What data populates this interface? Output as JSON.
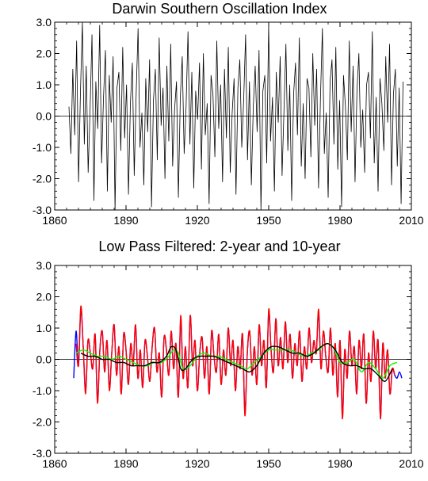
{
  "chart_data": [
    {
      "type": "line",
      "title": "Darwin Southern Oscillation Index",
      "xlim": [
        1860,
        2010
      ],
      "ylim": [
        -3.0,
        3.0
      ],
      "x_ticks": [
        "1860",
        "1890",
        "1920",
        "1950",
        "1980",
        "2010"
      ],
      "y_ticks": [
        "3.0",
        "2.0",
        "1.0",
        "0.0",
        "-1.0",
        "-2.0",
        "-3.0"
      ],
      "zero_line": true,
      "series": [
        {
          "color": "#000000",
          "x_start": 1866,
          "x_end": 2006.5,
          "values": [
            0.3,
            -1.2,
            1.5,
            -0.6,
            2.4,
            -2.1,
            0.8,
            3.0,
            -0.9,
            1.6,
            -1.8,
            0.2,
            2.6,
            -2.7,
            1.1,
            -0.4,
            2.9,
            -1.5,
            0.6,
            2.1,
            -2.4,
            1.3,
            -0.2,
            1.9,
            -3.0,
            0.9,
            1.4,
            -1.1,
            2.2,
            -0.7,
            1.0,
            -2.5,
            0.4,
            1.7,
            -1.9,
            0.7,
            2.8,
            -1.0,
            0.1,
            -2.2,
            1.2,
            -0.5,
            1.8,
            -2.9,
            0.5,
            1.5,
            -1.4,
            2.5,
            -0.3,
            0.9,
            -2.0,
            1.6,
            -0.8,
            2.3,
            -1.6,
            0.2,
            1.1,
            -2.6,
            0.6,
            1.9,
            -1.2,
            0.3,
            2.7,
            -0.9,
            1.4,
            -2.3,
            0.8,
            -0.1,
            1.7,
            -1.7,
            2.0,
            -0.6,
            0.4,
            -2.8,
            1.3,
            0.7,
            -1.3,
            2.4,
            -0.4,
            1.0,
            -2.1,
            1.5,
            -0.7,
            2.2,
            -1.8,
            0.1,
            1.2,
            -2.5,
            0.9,
            1.8,
            -1.0,
            0.5,
            2.6,
            -1.4,
            1.1,
            -2.2,
            0.3,
            1.6,
            -0.5,
            2.1,
            -3.0,
            0.8,
            1.3,
            -1.5,
            2.9,
            -0.8,
            0.6,
            -2.4,
            1.4,
            -0.2,
            1.9,
            -1.9,
            0.2,
            2.3,
            -1.1,
            1.0,
            -2.7,
            0.7,
            1.7,
            -0.6,
            2.5,
            -1.6,
            0.4,
            -2.0,
            1.2,
            0.9,
            -1.3,
            2.0,
            -0.3,
            1.5,
            -2.3,
            0.6,
            2.8,
            -1.2,
            0.1,
            -2.6,
            1.1,
            1.8,
            -0.9,
            2.2,
            -1.7,
            0.5,
            -2.9,
            1.3,
            0.3,
            -1.4,
            2.4,
            -0.5,
            1.6,
            -2.1,
            0.8,
            2.0,
            -1.0,
            0.2,
            -1.8,
            1.0,
            1.4,
            -0.7,
            2.7,
            -1.5,
            0.6,
            -2.4,
            1.2,
            0.4,
            -1.1,
            1.9,
            -0.2,
            2.3,
            -2.2,
            0.7,
            1.5,
            -1.6,
            0.9,
            -2.8,
            1.1
          ]
        }
      ]
    },
    {
      "type": "line",
      "title": "Low Pass Filtered: 2-year and 10-year",
      "xlim": [
        1860,
        2010
      ],
      "ylim": [
        -3.0,
        3.0
      ],
      "x_ticks": [
        "1860",
        "1890",
        "1920",
        "1950",
        "1980",
        "2010"
      ],
      "y_ticks": [
        "3.0",
        "2.0",
        "1.0",
        "0.0",
        "-1.0",
        "-2.0",
        "-3.0"
      ],
      "zero_line": true,
      "series": [
        {
          "color": "#0000ff",
          "x": [
            1868,
            1869,
            1870,
            1871,
            1872,
            1873,
            1874,
            1875,
            1876,
            1877,
            1878,
            1879,
            1880,
            1881,
            1882,
            1883,
            1884,
            1885,
            1886,
            1887,
            1888,
            1889,
            1890,
            1891,
            1892,
            1893,
            1894,
            1895,
            1896,
            1897,
            1898,
            1899,
            1900,
            1901,
            1902,
            1903,
            1904,
            1905,
            1906,
            1907,
            1908,
            1909,
            1910,
            1911,
            1912,
            1913,
            1914,
            1915,
            1916,
            1917,
            1918,
            1919,
            1920,
            1921,
            1922,
            1923,
            1924,
            1925,
            1926,
            1927,
            1928,
            1929,
            1930,
            1931,
            1932,
            1933,
            1934,
            1935,
            1936,
            1937,
            1938,
            1939,
            1940,
            1941,
            1942,
            1943,
            1944,
            1945,
            1946,
            1947,
            1948,
            1949,
            1950,
            1951,
            1952,
            1953,
            1954,
            1955,
            1956,
            1957,
            1958,
            1959,
            1960,
            1961,
            1962,
            1963,
            1964,
            1965,
            1966,
            1967,
            1968,
            1969,
            1970,
            1971,
            1972,
            1973,
            1974,
            1975,
            1976,
            1977,
            1978,
            1979,
            1980,
            1981,
            1982,
            1983,
            1984,
            1985,
            1986,
            1987,
            1988,
            1989,
            1990,
            1991,
            1992,
            1993,
            1994,
            1995,
            1996,
            1997,
            1998,
            1999,
            2000,
            2001,
            2002,
            2003,
            2004,
            2005,
            2006
          ],
          "values": [
            -0.6,
            0.9,
            -0.2,
            1.6,
            0.4,
            -1.0,
            0.6,
            0.2,
            -0.3,
            0.8,
            -1.3,
            0.3,
            0.9,
            -0.4,
            0.6,
            -0.9,
            0.2,
            1.1,
            -0.5,
            0.4,
            -1.1,
            0.8,
            0.3,
            -0.8,
            0.5,
            -0.2,
            1.1,
            -0.6,
            0.3,
            -0.9,
            0.6,
            0.1,
            -0.7,
            0.4,
            1.0,
            -0.4,
            0.2,
            -1.2,
            0.7,
            0.3,
            -0.5,
            0.9,
            -0.3,
            0.5,
            -1.2,
            1.3,
            -0.6,
            0.4,
            -0.9,
            1.4,
            -0.2,
            0.6,
            -1.0,
            0.2,
            0.7,
            -0.6,
            0.4,
            -1.1,
            0.9,
            0.1,
            -0.4,
            0.8,
            -0.8,
            0.3,
            -0.5,
            1.0,
            -0.2,
            0.6,
            -1.0,
            0.4,
            -0.3,
            0.8,
            -1.7,
            0.2,
            0.9,
            -0.5,
            0.4,
            -0.8,
            1.1,
            -0.2,
            0.6,
            -0.9,
            1.5,
            0.3,
            -0.4,
            1.3,
            -0.2,
            0.7,
            -0.3,
            1.2,
            -0.1,
            0.8,
            -0.6,
            0.5,
            -0.2,
            0.9,
            -0.7,
            0.4,
            -0.3,
            1.0,
            -0.1,
            0.6,
            0.2,
            1.5,
            -0.3,
            0.9,
            0.1,
            -0.4,
            1.0,
            -0.5,
            0.5,
            -1.2,
            0.6,
            -1.8,
            0.3,
            -0.6,
            0.9,
            -0.2,
            0.4,
            -1.1,
            0.6,
            -0.3,
            0.8,
            -1.4,
            0.2,
            -0.7,
            0.9,
            -0.3,
            0.6,
            -1.9,
            0.5,
            -0.6,
            0.3,
            -1.1,
            -0.3,
            -0.5,
            -0.6,
            -0.4,
            -0.6
          ]
        },
        {
          "color": "#ff0000",
          "x": [
            1869,
            1870,
            1871,
            1872,
            1873,
            1874,
            1875,
            1876,
            1877,
            1878,
            1879,
            1880,
            1881,
            1882,
            1883,
            1884,
            1885,
            1886,
            1887,
            1888,
            1889,
            1890,
            1891,
            1892,
            1893,
            1894,
            1895,
            1896,
            1897,
            1898,
            1899,
            1900,
            1901,
            1902,
            1903,
            1904,
            1905,
            1906,
            1907,
            1908,
            1909,
            1910,
            1911,
            1912,
            1913,
            1914,
            1915,
            1916,
            1917,
            1918,
            1919,
            1920,
            1921,
            1922,
            1923,
            1924,
            1925,
            1926,
            1927,
            1928,
            1929,
            1930,
            1931,
            1932,
            1933,
            1934,
            1935,
            1936,
            1937,
            1938,
            1939,
            1940,
            1941,
            1942,
            1943,
            1944,
            1945,
            1946,
            1947,
            1948,
            1949,
            1950,
            1951,
            1952,
            1953,
            1954,
            1955,
            1956,
            1957,
            1958,
            1959,
            1960,
            1961,
            1962,
            1963,
            1964,
            1965,
            1966,
            1967,
            1968,
            1969,
            1970,
            1971,
            1972,
            1973,
            1974,
            1975,
            1976,
            1977,
            1978,
            1979,
            1980,
            1981,
            1982,
            1983,
            1984,
            1985,
            1986,
            1987,
            1988,
            1989,
            1990,
            1991,
            1992,
            1993,
            1994,
            1995,
            1996,
            1997,
            1998,
            1999,
            2000,
            2001,
            2002,
            2003
          ],
          "values": [
            0.5,
            -0.2,
            1.7,
            0.4,
            -1.1,
            0.6,
            0.2,
            -0.3,
            0.8,
            -1.4,
            0.3,
            0.9,
            -0.4,
            0.6,
            -1.0,
            0.2,
            1.1,
            -0.5,
            0.4,
            -1.1,
            0.8,
            0.3,
            -0.8,
            0.5,
            -0.2,
            1.1,
            -0.6,
            0.3,
            -0.9,
            0.6,
            0.1,
            -0.7,
            0.4,
            1.0,
            -0.4,
            0.2,
            -1.2,
            0.7,
            0.3,
            -0.5,
            0.9,
            -0.3,
            0.5,
            -1.2,
            1.4,
            -0.6,
            0.4,
            -0.9,
            1.4,
            -0.2,
            0.6,
            -1.0,
            0.2,
            0.7,
            -0.6,
            0.4,
            -1.1,
            0.9,
            0.1,
            -0.4,
            0.8,
            -0.8,
            0.3,
            -0.5,
            1.0,
            -0.2,
            0.6,
            -1.0,
            0.4,
            -0.3,
            0.8,
            -1.8,
            0.2,
            0.9,
            -0.5,
            0.4,
            -0.8,
            1.1,
            -0.2,
            0.6,
            -0.9,
            1.6,
            0.3,
            -0.4,
            1.3,
            -0.2,
            0.7,
            -0.3,
            1.2,
            -0.1,
            0.8,
            -0.6,
            0.5,
            -0.2,
            0.9,
            -0.7,
            0.4,
            -0.3,
            1.0,
            -0.1,
            0.6,
            0.2,
            1.6,
            -0.3,
            0.9,
            0.1,
            -0.4,
            1.0,
            -0.5,
            0.5,
            -1.2,
            0.6,
            -1.9,
            0.3,
            -0.6,
            0.9,
            -0.2,
            0.4,
            -1.1,
            0.6,
            -0.3,
            0.8,
            -1.4,
            0.2,
            -0.7,
            0.9,
            -0.3,
            0.6,
            -1.9,
            0.5,
            -0.6,
            0.3,
            -1.1,
            -0.3,
            -0.5
          ]
        },
        {
          "color": "#00ff00",
          "x": [
            1869,
            1872,
            1875,
            1878,
            1881,
            1884,
            1887,
            1890,
            1893,
            1896,
            1899,
            1902,
            1905,
            1908,
            1910,
            1912,
            1914,
            1917,
            1920,
            1923,
            1926,
            1929,
            1932,
            1935,
            1938,
            1941,
            1944,
            1947,
            1950,
            1953,
            1956,
            1959,
            1962,
            1965,
            1968,
            1971,
            1974,
            1977,
            1980,
            1983,
            1986,
            1989,
            1992,
            1995,
            1998,
            2001,
            2004
          ],
          "values": [
            0.2,
            0.3,
            0.2,
            0.1,
            0.1,
            0.0,
            0.1,
            0.0,
            -0.1,
            -0.2,
            -0.2,
            -0.1,
            -0.1,
            0.1,
            0.3,
            0.2,
            -0.3,
            -0.2,
            0.1,
            0.2,
            0.1,
            0.1,
            0.0,
            -0.1,
            -0.2,
            -0.3,
            -0.1,
            0.1,
            0.3,
            0.3,
            0.3,
            0.3,
            0.2,
            0.1,
            0.2,
            0.3,
            0.5,
            0.4,
            -0.1,
            -0.1,
            0.0,
            -0.4,
            -0.1,
            -0.3,
            -0.6,
            -0.2,
            -0.1
          ]
        },
        {
          "color": "#000000",
          "x": [
            1871,
            1874,
            1877,
            1880,
            1883,
            1886,
            1889,
            1892,
            1895,
            1898,
            1901,
            1904,
            1907,
            1909,
            1911,
            1913,
            1915,
            1918,
            1921,
            1924,
            1927,
            1930,
            1933,
            1936,
            1939,
            1942,
            1945,
            1948,
            1951,
            1954,
            1957,
            1960,
            1963,
            1966,
            1969,
            1972,
            1975,
            1978,
            1981,
            1984,
            1987,
            1990,
            1993,
            1996,
            1999,
            2002
          ],
          "values": [
            0.2,
            0.1,
            0.1,
            0.0,
            0.0,
            -0.1,
            -0.1,
            -0.2,
            -0.2,
            -0.2,
            -0.1,
            -0.1,
            0.1,
            0.4,
            0.3,
            -0.3,
            -0.3,
            0.0,
            0.1,
            0.1,
            0.1,
            0.0,
            -0.1,
            -0.2,
            -0.3,
            -0.4,
            -0.2,
            0.2,
            0.4,
            0.4,
            0.3,
            0.2,
            0.2,
            0.1,
            0.2,
            0.4,
            0.5,
            0.3,
            -0.1,
            -0.2,
            -0.2,
            -0.3,
            -0.3,
            -0.5,
            -0.7,
            -0.3
          ]
        }
      ]
    }
  ]
}
